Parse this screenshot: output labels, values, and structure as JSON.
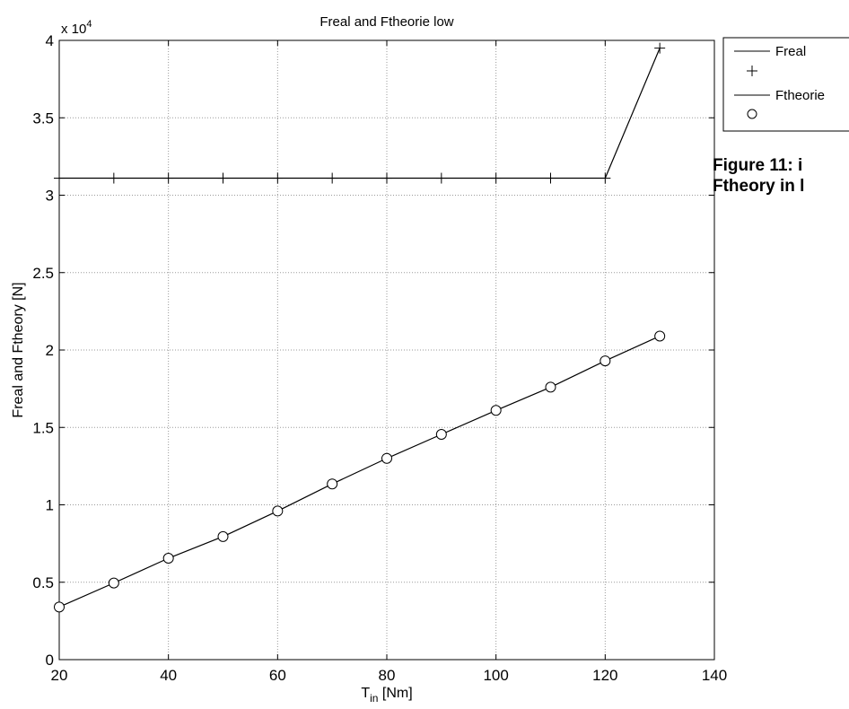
{
  "chart_data": {
    "type": "line",
    "title": "Freal and Ftheorie low",
    "xlabel_main": "T",
    "xlabel_sub": "in",
    "xlabel_unit": " [Nm]",
    "ylabel": "Freal and Ftheory [N]",
    "y_multiplier": "x 10",
    "y_multiplier_exp": "4",
    "xlim": [
      20,
      140
    ],
    "ylim": [
      0,
      40000
    ],
    "x_ticks": [
      "20",
      "40",
      "60",
      "80",
      "100",
      "120",
      "140"
    ],
    "y_ticks": [
      "0",
      "0.5",
      "1",
      "1.5",
      "2",
      "2.5",
      "3",
      "3.5",
      "4"
    ],
    "grid": true,
    "legend_position": "outside-top-right",
    "series": [
      {
        "name": "Freal",
        "marker": "plus",
        "color": "#000000",
        "x": [
          20,
          30,
          40,
          50,
          60,
          70,
          80,
          90,
          100,
          110,
          120,
          130
        ],
        "y": [
          31100,
          31100,
          31100,
          31100,
          31100,
          31100,
          31100,
          31100,
          31100,
          31100,
          31100,
          39500
        ]
      },
      {
        "name": "Ftheorie",
        "marker": "circle",
        "color": "#000000",
        "x": [
          20,
          30,
          40,
          50,
          60,
          70,
          80,
          90,
          100,
          110,
          120,
          130
        ],
        "y": [
          3400,
          4950,
          6550,
          7950,
          9600,
          11350,
          13000,
          14550,
          16100,
          17600,
          19300,
          20900
        ]
      }
    ]
  },
  "caption": {
    "line1": "Figure 11: i",
    "line2": "Ftheory in l"
  }
}
